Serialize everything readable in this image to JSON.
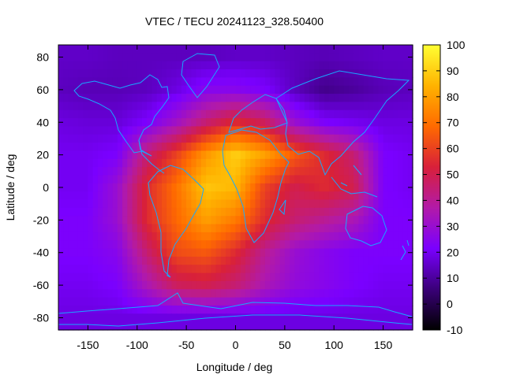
{
  "chart_data": {
    "type": "heatmap",
    "title": "VTEC / TECU 20241123_328.50400",
    "xlabel": "Longitude / deg",
    "ylabel": "Latitude / deg",
    "xlim": [
      -180,
      180
    ],
    "ylim": [
      -87.5,
      87.5
    ],
    "xticks": [
      -150,
      -100,
      -50,
      0,
      50,
      100,
      150
    ],
    "yticks": [
      -80,
      -60,
      -40,
      -20,
      0,
      20,
      40,
      60,
      80
    ],
    "colorbar": {
      "range": [
        -10,
        100
      ],
      "ticks": [
        -10,
        0,
        10,
        20,
        30,
        40,
        50,
        60,
        70,
        80,
        90,
        100
      ],
      "stops": [
        "#000000",
        "#3a0078",
        "#7a00ff",
        "#b21aa8",
        "#d8203a",
        "#ff6a00",
        "#ffb300",
        "#ffff33"
      ]
    },
    "value_grid": {
      "description": "Approximate VTEC in TECU; rows from latitude 80 down to -80 step 20, columns from longitude -180 to 180 step 30",
      "lats": [
        80,
        60,
        40,
        20,
        0,
        -20,
        -40,
        -60,
        -80
      ],
      "lons": [
        -180,
        -150,
        -120,
        -90,
        -60,
        -30,
        0,
        30,
        60,
        90,
        120,
        150,
        180
      ],
      "values": [
        [
          15,
          15,
          14,
          14,
          14,
          14,
          15,
          15,
          14,
          13,
          14,
          15,
          15
        ],
        [
          14,
          13,
          13,
          14,
          18,
          25,
          25,
          22,
          14,
          8,
          10,
          13,
          14
        ],
        [
          18,
          17,
          17,
          22,
          32,
          45,
          55,
          48,
          30,
          22,
          20,
          18,
          18
        ],
        [
          20,
          20,
          22,
          45,
          60,
          78,
          90,
          80,
          65,
          55,
          45,
          22,
          20
        ],
        [
          20,
          20,
          30,
          55,
          70,
          88,
          85,
          60,
          50,
          55,
          50,
          22,
          20
        ],
        [
          22,
          22,
          30,
          55,
          68,
          80,
          72,
          55,
          45,
          40,
          35,
          22,
          22
        ],
        [
          22,
          22,
          25,
          45,
          62,
          65,
          55,
          40,
          30,
          25,
          22,
          22,
          22
        ],
        [
          20,
          20,
          22,
          35,
          48,
          50,
          45,
          35,
          28,
          25,
          22,
          20,
          20
        ],
        [
          18,
          18,
          18,
          18,
          18,
          18,
          18,
          18,
          18,
          18,
          18,
          18,
          18
        ]
      ]
    }
  }
}
